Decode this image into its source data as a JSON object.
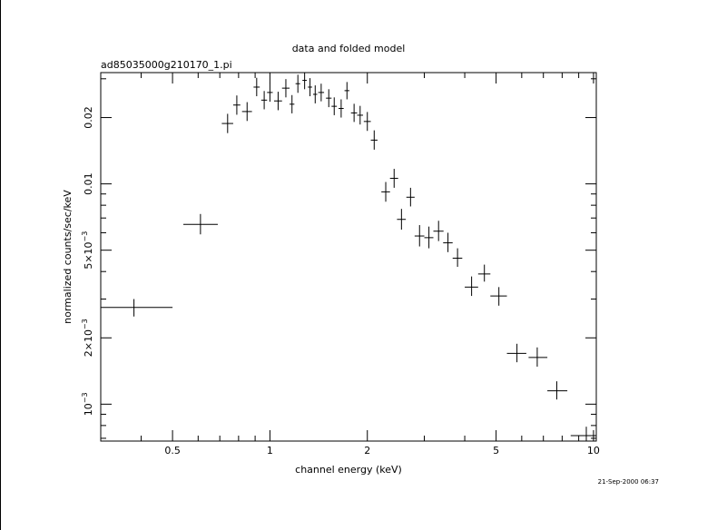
{
  "chart_data": {
    "type": "scatter",
    "title": "data and folded model",
    "subtitle": "ad85035000g210170_1.pi",
    "xlabel": "channel energy (keV)",
    "ylabel": "normalized counts/sec/keV",
    "xscale": "log",
    "yscale": "log",
    "xlim": [
      0.3,
      10.2
    ],
    "ylim": [
      0.00068,
      0.032
    ],
    "grid": false,
    "legend": "none",
    "x_ticks": [
      {
        "value": 0.5,
        "label": "0.5"
      },
      {
        "value": 1,
        "label": "1"
      },
      {
        "value": 2,
        "label": "2"
      },
      {
        "value": 5,
        "label": "5"
      },
      {
        "value": 10,
        "label": "10"
      }
    ],
    "x_minor_ticks": [
      0.4,
      0.6,
      0.7,
      0.8,
      0.9,
      3,
      4,
      6,
      7,
      8,
      9
    ],
    "y_ticks": [
      {
        "value": 0.001,
        "label": "10",
        "sup": "−3"
      },
      {
        "value": 0.002,
        "label": "2×10",
        "sup": "−3"
      },
      {
        "value": 0.005,
        "label": "5×10",
        "sup": "−3"
      },
      {
        "value": 0.01,
        "label": "0.01"
      },
      {
        "value": 0.02,
        "label": "0.02"
      }
    ],
    "y_minor_ticks": [
      0.0007,
      0.0008,
      0.0009,
      0.003,
      0.004,
      0.006,
      0.007,
      0.008,
      0.009,
      0.03
    ],
    "series": [
      {
        "marker": "cross",
        "points": [
          {
            "x": 0.38,
            "xerr": [
              0.08,
              0.12
            ],
            "y": 0.00275,
            "yerr": [
              0.00025,
              0.00025
            ]
          },
          {
            "x": 0.61,
            "xerr": [
              0.07,
              0.08
            ],
            "y": 0.00655,
            "yerr": [
              0.00065,
              0.00075
            ]
          },
          {
            "x": 0.74,
            "xerr": [
              0.03,
              0.03
            ],
            "y": 0.0188,
            "yerr": [
              0.0018,
              0.002
            ]
          },
          {
            "x": 0.79,
            "xerr": [
              0.02,
              0.02
            ],
            "y": 0.0228,
            "yerr": [
              0.0022,
              0.0024
            ]
          },
          {
            "x": 0.85,
            "xerr": [
              0.03,
              0.03
            ],
            "y": 0.0213,
            "yerr": [
              0.002,
              0.0022
            ]
          },
          {
            "x": 0.91,
            "xerr": [
              0.02,
              0.02
            ],
            "y": 0.0275,
            "yerr": [
              0.0025,
              0.0028
            ]
          },
          {
            "x": 0.96,
            "xerr": [
              0.02,
              0.02
            ],
            "y": 0.024,
            "yerr": [
              0.0022,
              0.0024
            ]
          },
          {
            "x": 1.0,
            "xerr": [
              0.02,
              0.02
            ],
            "y": 0.026,
            "yerr": [
              0.0024,
              0.0026
            ]
          },
          {
            "x": 1.06,
            "xerr": [
              0.03,
              0.03
            ],
            "y": 0.0238,
            "yerr": [
              0.0022,
              0.0024
            ]
          },
          {
            "x": 1.12,
            "xerr": [
              0.03,
              0.03
            ],
            "y": 0.0272,
            "yerr": [
              0.0025,
              0.0027
            ]
          },
          {
            "x": 1.17,
            "xerr": [
              0.02,
              0.02
            ],
            "y": 0.023,
            "yerr": [
              0.0021,
              0.0023
            ]
          },
          {
            "x": 1.22,
            "xerr": [
              0.02,
              0.02
            ],
            "y": 0.0285,
            "yerr": [
              0.0026,
              0.0028
            ]
          },
          {
            "x": 1.28,
            "xerr": [
              0.02,
              0.02
            ],
            "y": 0.0295,
            "yerr": [
              0.0026,
              0.0028
            ]
          },
          {
            "x": 1.33,
            "xerr": [
              0.02,
              0.02
            ],
            "y": 0.0275,
            "yerr": [
              0.0025,
              0.0027
            ]
          },
          {
            "x": 1.38,
            "xerr": [
              0.02,
              0.02
            ],
            "y": 0.0255,
            "yerr": [
              0.0023,
              0.0025
            ]
          },
          {
            "x": 1.44,
            "xerr": [
              0.03,
              0.03
            ],
            "y": 0.026,
            "yerr": [
              0.0023,
              0.0025
            ]
          },
          {
            "x": 1.52,
            "xerr": [
              0.03,
              0.03
            ],
            "y": 0.0245,
            "yerr": [
              0.0022,
              0.0024
            ]
          },
          {
            "x": 1.58,
            "xerr": [
              0.03,
              0.03
            ],
            "y": 0.0225,
            "yerr": [
              0.002,
              0.0022
            ]
          },
          {
            "x": 1.66,
            "xerr": [
              0.03,
              0.03
            ],
            "y": 0.022,
            "yerr": [
              0.002,
              0.0022
            ]
          },
          {
            "x": 1.73,
            "xerr": [
              0.03,
              0.03
            ],
            "y": 0.0265,
            "yerr": [
              0.0023,
              0.0025
            ]
          },
          {
            "x": 1.82,
            "xerr": [
              0.04,
              0.04
            ],
            "y": 0.021,
            "yerr": [
              0.0019,
              0.0021
            ]
          },
          {
            "x": 1.9,
            "xerr": [
              0.04,
              0.04
            ],
            "y": 0.0205,
            "yerr": [
              0.0019,
              0.0021
            ]
          },
          {
            "x": 2.0,
            "xerr": [
              0.05,
              0.05
            ],
            "y": 0.0192,
            "yerr": [
              0.0018,
              0.002
            ]
          },
          {
            "x": 2.1,
            "xerr": [
              0.05,
              0.05
            ],
            "y": 0.0158,
            "yerr": [
              0.0015,
              0.0017
            ]
          },
          {
            "x": 2.28,
            "xerr": [
              0.07,
              0.07
            ],
            "y": 0.0092,
            "yerr": [
              0.0009,
              0.001
            ]
          },
          {
            "x": 2.42,
            "xerr": [
              0.07,
              0.07
            ],
            "y": 0.0106,
            "yerr": [
              0.001,
              0.0011
            ]
          },
          {
            "x": 2.55,
            "xerr": [
              0.08,
              0.08
            ],
            "y": 0.0069,
            "yerr": [
              0.0007,
              0.0008
            ]
          },
          {
            "x": 2.72,
            "xerr": [
              0.08,
              0.08
            ],
            "y": 0.0087,
            "yerr": [
              0.0008,
              0.0009
            ]
          },
          {
            "x": 2.9,
            "xerr": [
              0.1,
              0.1
            ],
            "y": 0.0058,
            "yerr": [
              0.0006,
              0.0007
            ]
          },
          {
            "x": 3.1,
            "xerr": [
              0.1,
              0.1
            ],
            "y": 0.0057,
            "yerr": [
              0.0006,
              0.0007
            ]
          },
          {
            "x": 3.32,
            "xerr": [
              0.12,
              0.12
            ],
            "y": 0.0061,
            "yerr": [
              0.0006,
              0.0007
            ]
          },
          {
            "x": 3.55,
            "xerr": [
              0.12,
              0.12
            ],
            "y": 0.0054,
            "yerr": [
              0.0005,
              0.0006
            ]
          },
          {
            "x": 3.8,
            "xerr": [
              0.13,
              0.13
            ],
            "y": 0.0046,
            "yerr": [
              0.0004,
              0.0005
            ]
          },
          {
            "x": 4.2,
            "xerr": [
              0.2,
              0.2
            ],
            "y": 0.0034,
            "yerr": [
              0.0003,
              0.0004
            ]
          },
          {
            "x": 4.6,
            "xerr": [
              0.2,
              0.2
            ],
            "y": 0.0039,
            "yerr": [
              0.0003,
              0.0004
            ]
          },
          {
            "x": 5.1,
            "xerr": [
              0.3,
              0.3
            ],
            "y": 0.0031,
            "yerr": [
              0.0003,
              0.0003
            ]
          },
          {
            "x": 5.8,
            "xerr": [
              0.4,
              0.4
            ],
            "y": 0.0017,
            "yerr": [
              0.00015,
              0.00018
            ]
          },
          {
            "x": 6.7,
            "xerr": [
              0.4,
              0.5
            ],
            "y": 0.00163,
            "yerr": [
              0.00015,
              0.00018
            ]
          },
          {
            "x": 7.7,
            "xerr": [
              0.5,
              0.6
            ],
            "y": 0.00115,
            "yerr": [
              0.0001,
              0.00012
            ]
          },
          {
            "x": 9.5,
            "xerr": [
              1.0,
              0.7
            ],
            "y": 0.00072,
            "yerr": [
              6e-05,
              7e-05
            ]
          }
        ]
      }
    ]
  },
  "footer": {
    "timestamp": "21-Sep-2000 06:37"
  }
}
